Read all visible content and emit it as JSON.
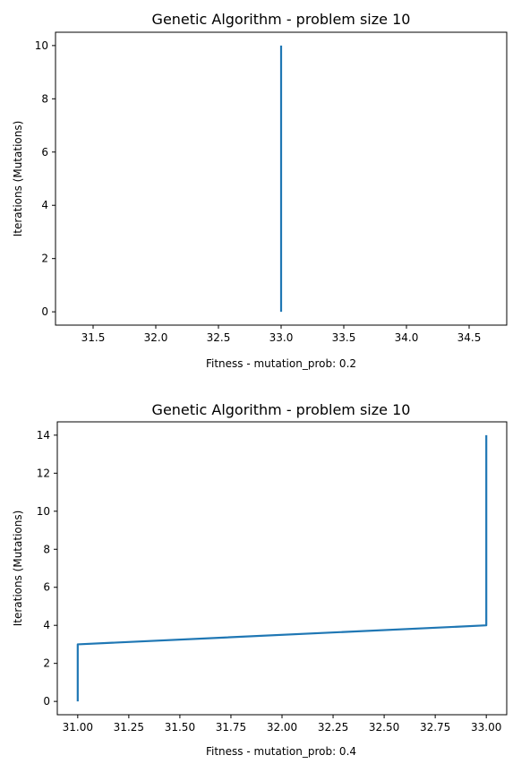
{
  "chart_data": [
    {
      "type": "line",
      "title": "Genetic Algorithm - problem size 10",
      "xlabel": "Fitness - mutation_prob: 0.2",
      "ylabel": "Iterations (Mutations)",
      "xlim": [
        31.2,
        34.8
      ],
      "ylim": [
        -0.5,
        10.5
      ],
      "xticks": [
        31.5,
        32.0,
        32.5,
        33.0,
        33.5,
        34.0,
        34.5
      ],
      "xtick_labels": [
        "31.5",
        "32.0",
        "32.5",
        "33.0",
        "33.5",
        "34.0",
        "34.5"
      ],
      "yticks": [
        0,
        2,
        4,
        6,
        8,
        10
      ],
      "ytick_labels": [
        "0",
        "2",
        "4",
        "6",
        "8",
        "10"
      ],
      "grid": false,
      "color": "#1f77b4",
      "series": [
        {
          "x": [
            33,
            33,
            33,
            33,
            33,
            33,
            33,
            33,
            33,
            33,
            33
          ],
          "y": [
            0,
            1,
            2,
            3,
            4,
            5,
            6,
            7,
            8,
            9,
            10
          ]
        }
      ]
    },
    {
      "type": "line",
      "title": "Genetic Algorithm - problem size 10",
      "xlabel": "Fitness - mutation_prob: 0.4",
      "ylabel": "Iterations (Mutations)",
      "xlim": [
        30.9,
        33.1
      ],
      "ylim": [
        -0.7,
        14.7
      ],
      "xticks": [
        31.0,
        31.25,
        31.5,
        31.75,
        32.0,
        32.25,
        32.5,
        32.75,
        33.0
      ],
      "xtick_labels": [
        "31.00",
        "31.25",
        "31.50",
        "31.75",
        "32.00",
        "32.25",
        "32.50",
        "32.75",
        "33.00"
      ],
      "yticks": [
        0,
        2,
        4,
        6,
        8,
        10,
        12,
        14
      ],
      "ytick_labels": [
        "0",
        "2",
        "4",
        "6",
        "8",
        "10",
        "12",
        "14"
      ],
      "grid": false,
      "color": "#1f77b4",
      "series": [
        {
          "x": [
            31,
            31,
            31,
            31,
            33,
            33,
            33,
            33,
            33,
            33,
            33,
            33,
            33,
            33,
            33
          ],
          "y": [
            0,
            1,
            2,
            3,
            4,
            5,
            6,
            7,
            8,
            9,
            10,
            11,
            12,
            13,
            14
          ]
        }
      ]
    }
  ]
}
